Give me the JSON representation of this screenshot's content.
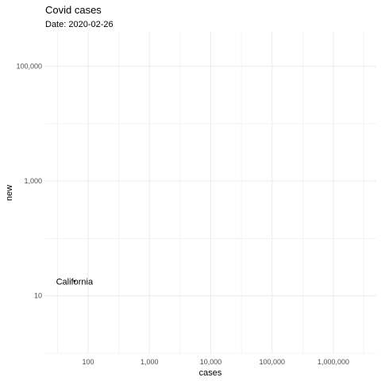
{
  "chart_data": {
    "type": "scatter",
    "title": "Covid cases",
    "subtitle": "Date: 2020-02-26",
    "xlabel": "cases",
    "ylabel": "new",
    "x_scale": "log10",
    "y_scale": "log10",
    "xlim": [
      20,
      5000000
    ],
    "ylim": [
      1,
      400000
    ],
    "x_ticks": [
      {
        "value": 100,
        "label": "100"
      },
      {
        "value": 1000,
        "label": "1,000"
      },
      {
        "value": 10000,
        "label": "10,000"
      },
      {
        "value": 100000,
        "label": "100,000"
      },
      {
        "value": 1000000,
        "label": "1,000,000"
      }
    ],
    "y_ticks": [
      {
        "value": 10,
        "label": "10"
      },
      {
        "value": 1000,
        "label": "1,000"
      },
      {
        "value": 100000,
        "label": "100,000"
      }
    ],
    "grid": true,
    "points": [
      {
        "label": "California",
        "x": 60,
        "y": 18
      }
    ],
    "colors": {
      "grid": "#ebebeb",
      "point": "#000000"
    }
  }
}
